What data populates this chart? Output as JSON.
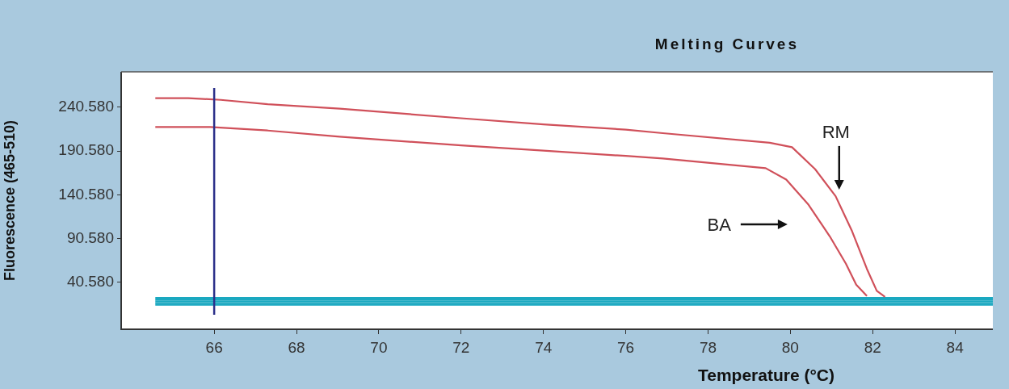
{
  "chart_data": {
    "type": "line",
    "title": "Melting Curves",
    "xlabel": "Temperature (°C)",
    "ylabel": "Fluorescence (465-510)",
    "xlim": [
      63.74,
      84.92
    ],
    "xticks": [
      66,
      68,
      70,
      72,
      74,
      76,
      78,
      80,
      82,
      84
    ],
    "ylim": [
      -12.9,
      281
    ],
    "yticks": [
      {
        "value": 40.58,
        "label": "40.580"
      },
      {
        "value": 90.58,
        "label": "90.580"
      },
      {
        "value": 140.58,
        "label": "140.580"
      },
      {
        "value": 190.58,
        "label": "190.580"
      },
      {
        "value": 240.58,
        "label": "240.580"
      }
    ],
    "grid": false,
    "legend": false,
    "marker": "none",
    "line_style": "solid",
    "ref_lines": [
      {
        "axis": "x",
        "value": 66,
        "color": "#2b2f8a"
      }
    ],
    "annotations": [
      "RM",
      "BA"
    ],
    "series": [
      {
        "color": "#d0505a",
        "x": [
          64.57,
          65.37,
          66.16,
          67.3,
          69.05,
          72,
          74,
          76,
          76.9,
          79.5,
          80.04,
          80.6,
          81.1,
          81.5,
          81.86,
          82.1,
          82.3
        ],
        "values": [
          251,
          251,
          249,
          244,
          239,
          228,
          221,
          215,
          211,
          200,
          195,
          170,
          139,
          99,
          56,
          31,
          24
        ]
      },
      {
        "color": "#d0505a",
        "x": [
          64.57,
          65.9,
          67.3,
          69.05,
          72,
          74,
          76,
          76.9,
          79.4,
          79.9,
          80.43,
          80.96,
          81.35,
          81.6,
          81.86
        ],
        "values": [
          218,
          218,
          214,
          207,
          197,
          191,
          185,
          182,
          171,
          158,
          130,
          93,
          62,
          38,
          25
        ]
      },
      {
        "color": "#1aa8c0",
        "x": [
          64.57,
          84.92
        ],
        "values": [
          15,
          15
        ]
      },
      {
        "color": "#1aa8c0",
        "x": [
          64.57,
          84.92
        ],
        "values": [
          17,
          17
        ]
      },
      {
        "color": "#1aa8c0",
        "x": [
          64.57,
          84.92
        ],
        "values": [
          19,
          19
        ]
      },
      {
        "color": "#1aa8c0",
        "x": [
          64.57,
          84.92
        ],
        "values": [
          21,
          21
        ]
      },
      {
        "color": "#1aa8c0",
        "x": [
          64.57,
          84.92
        ],
        "values": [
          23,
          23
        ]
      }
    ]
  }
}
